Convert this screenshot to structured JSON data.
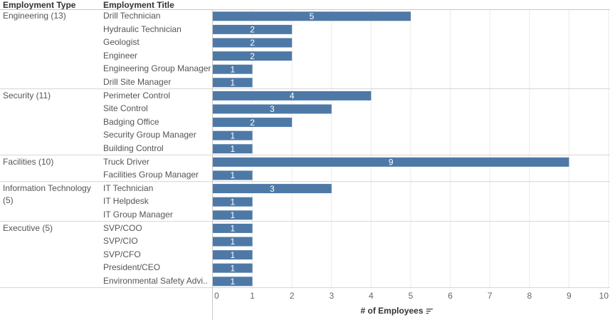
{
  "headers": {
    "employment_type": "Employment Type",
    "employment_title": "Employment Title"
  },
  "chart_data": {
    "type": "bar",
    "orientation": "horizontal",
    "xlabel": "# of Employees",
    "xlim": [
      0,
      10
    ],
    "xticks": [
      0,
      1,
      2,
      3,
      4,
      5,
      6,
      7,
      8,
      9,
      10
    ],
    "bar_color": "#4e79a7",
    "grid": true,
    "groups": [
      {
        "label": "Engineering (13)",
        "rows": [
          {
            "title": "Drill Technician",
            "value": 5
          },
          {
            "title": "Hydraulic Technician",
            "value": 2
          },
          {
            "title": "Geologist",
            "value": 2
          },
          {
            "title": "Engineer",
            "value": 2
          },
          {
            "title": "Engineering Group Manager",
            "value": 1
          },
          {
            "title": "Drill Site Manager",
            "value": 1
          }
        ]
      },
      {
        "label": "Security (11)",
        "rows": [
          {
            "title": "Perimeter Control",
            "value": 4
          },
          {
            "title": "Site Control",
            "value": 3
          },
          {
            "title": "Badging Office",
            "value": 2
          },
          {
            "title": "Security Group Manager",
            "value": 1
          },
          {
            "title": "Building Control",
            "value": 1
          }
        ]
      },
      {
        "label": "Facilities (10)",
        "rows": [
          {
            "title": "Truck Driver",
            "value": 9
          },
          {
            "title": "Facilities Group Manager",
            "value": 1
          }
        ]
      },
      {
        "label": "Information Technology (5)",
        "rows": [
          {
            "title": "IT Technician",
            "value": 3
          },
          {
            "title": "IT Helpdesk",
            "value": 1
          },
          {
            "title": "IT Group Manager",
            "value": 1
          }
        ]
      },
      {
        "label": "Executive (5)",
        "rows": [
          {
            "title": "SVP/COO",
            "value": 1
          },
          {
            "title": "SVP/CIO",
            "value": 1
          },
          {
            "title": "SVP/CFO",
            "value": 1
          },
          {
            "title": "President/CEO",
            "value": 1
          },
          {
            "title": "Environmental Safety Advi..",
            "value": 1
          }
        ]
      }
    ]
  },
  "icons": {
    "sort": "sort-descending-icon"
  }
}
